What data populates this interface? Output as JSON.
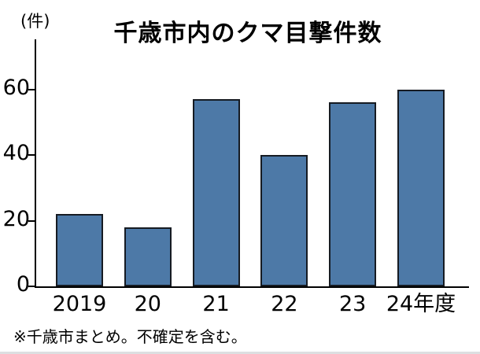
{
  "chart_data": {
    "type": "bar",
    "title": "千歳市内のクマ目撃件数",
    "unit_label": "(件)",
    "categories": [
      "2019",
      "20",
      "21",
      "22",
      "23",
      "24年度"
    ],
    "values": [
      22,
      18,
      57,
      40,
      56,
      60
    ],
    "yticks": [
      0,
      20,
      40,
      60
    ],
    "ylim": [
      0,
      75
    ],
    "xlabel": "",
    "ylabel": "件",
    "grid": false,
    "legend": "none",
    "footnote": "※千歳市まとめ。不確定を含む。",
    "colors": {
      "bar_fill": "#4d79a7",
      "bar_border": "#161b22",
      "axis": "#000000",
      "text": "#000000",
      "background": "#ffffff"
    }
  }
}
